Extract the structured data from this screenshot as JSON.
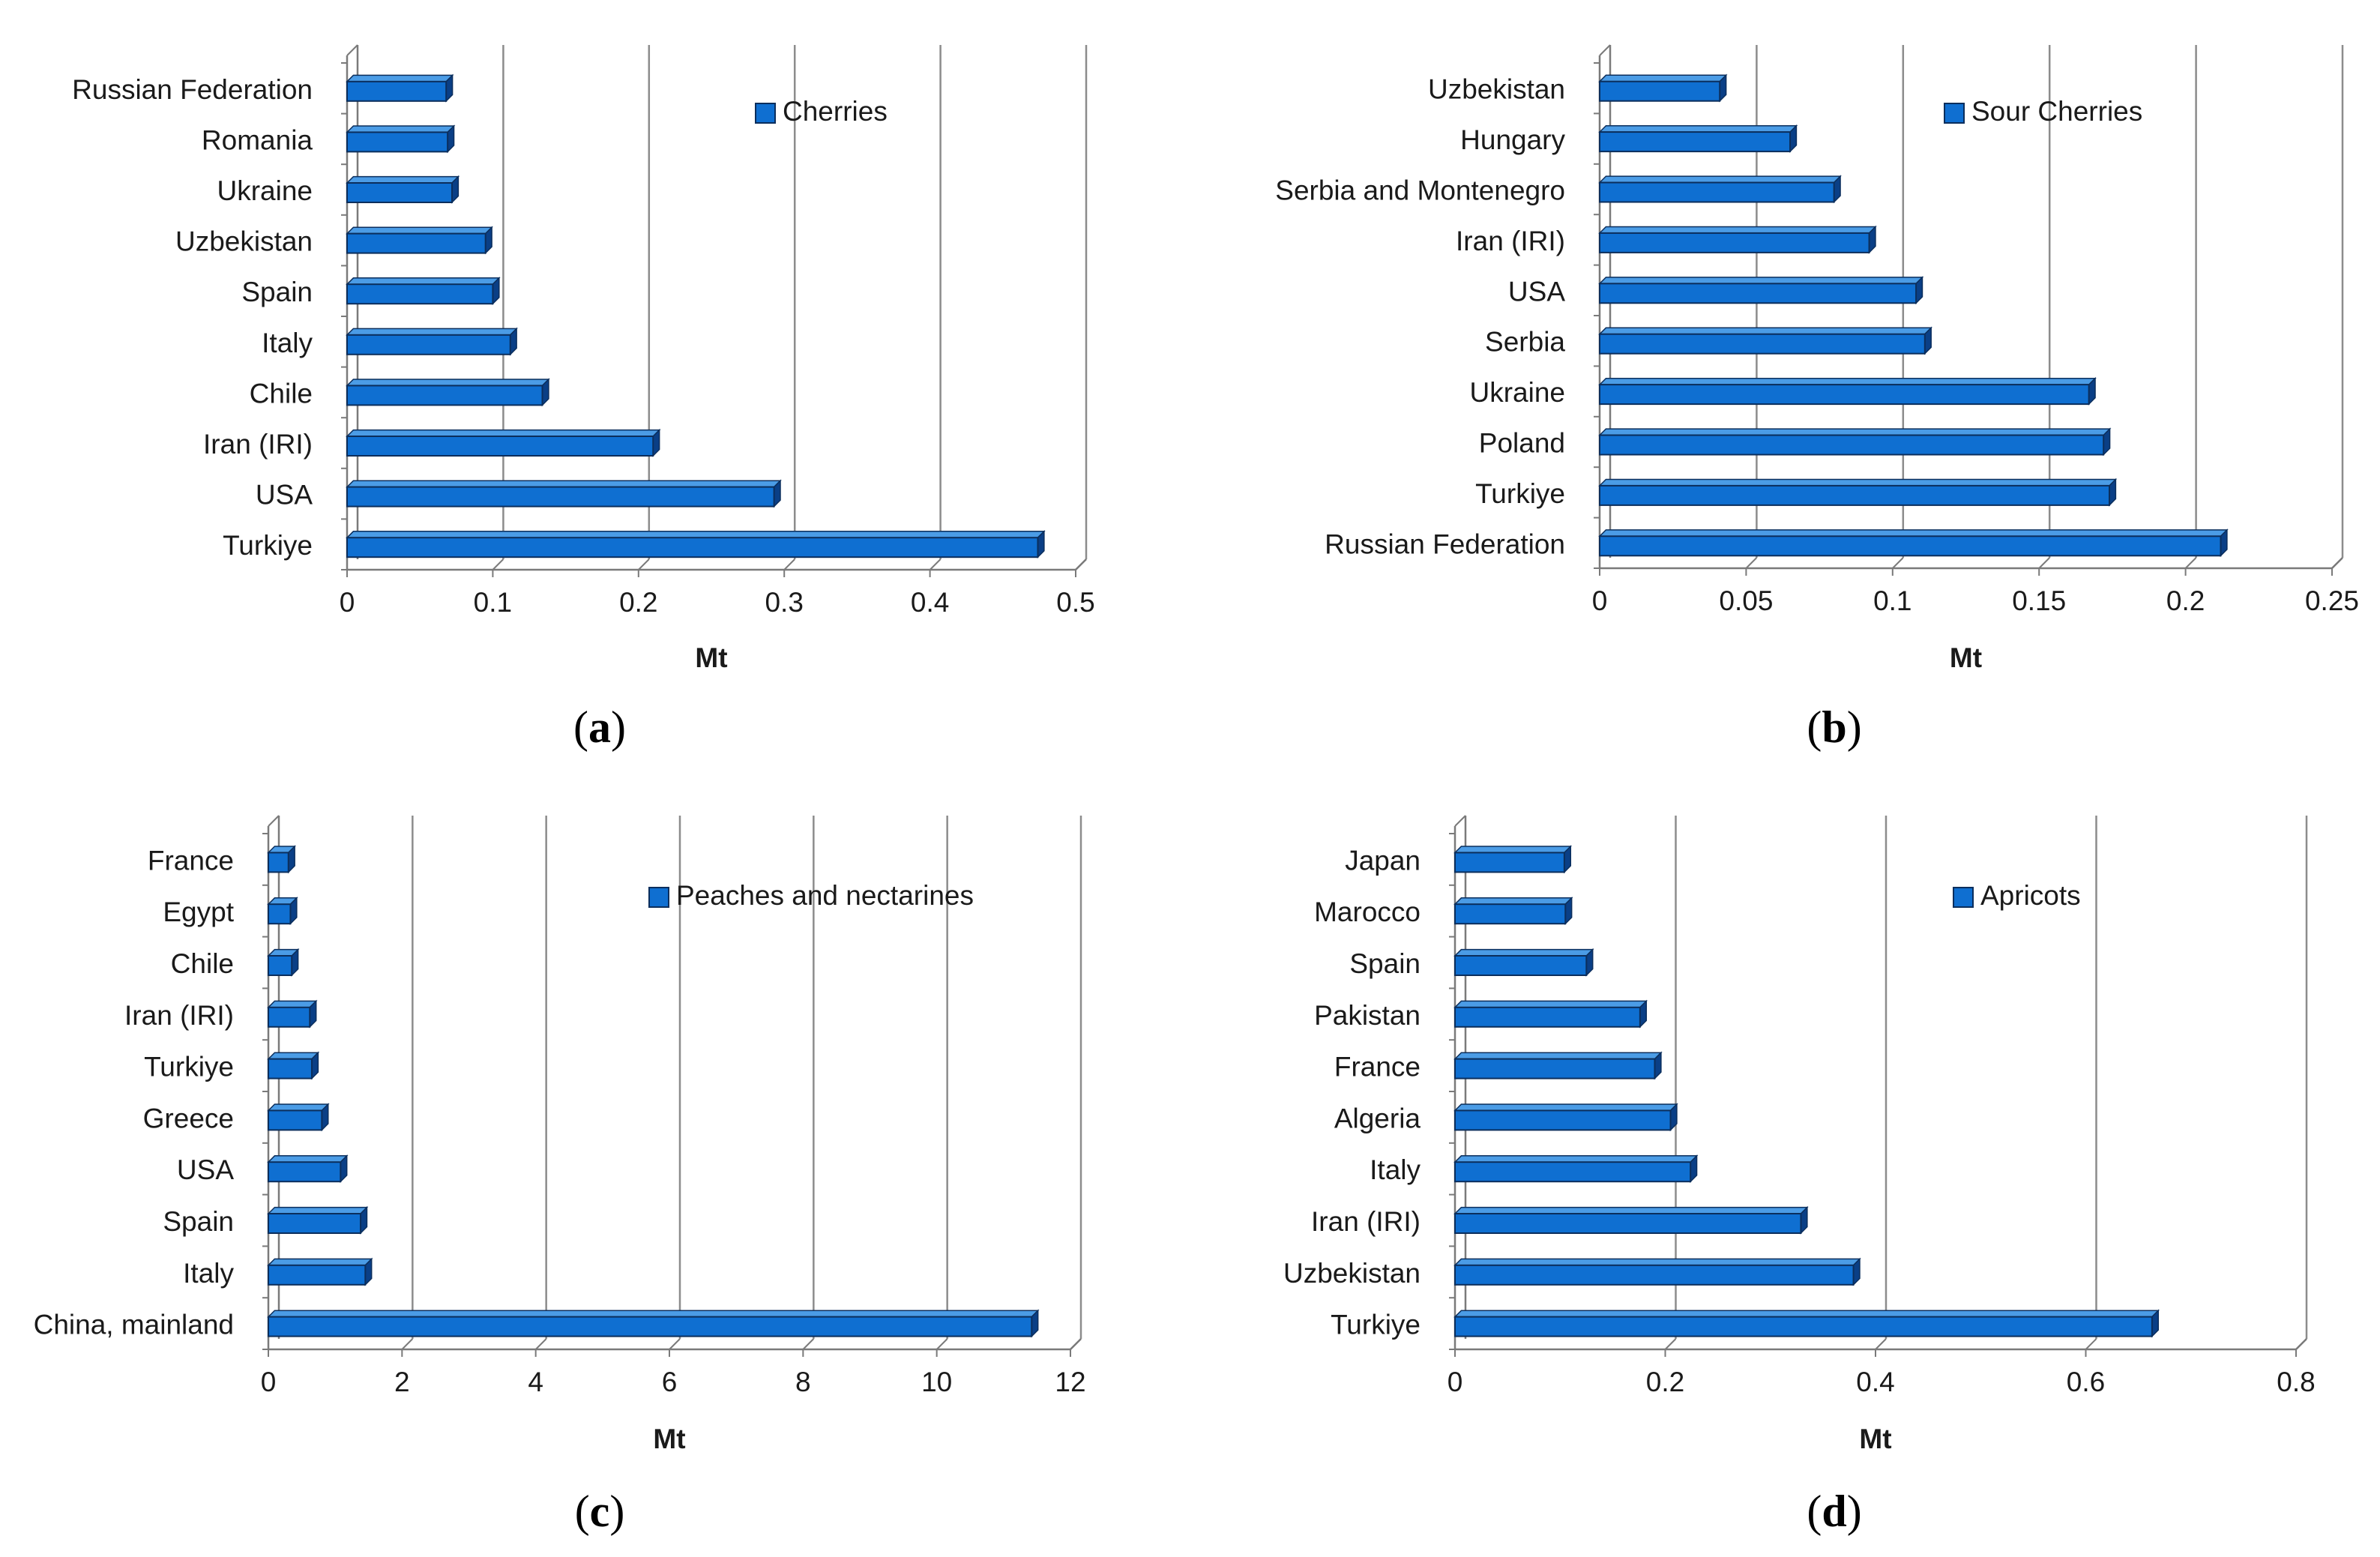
{
  "colors": {
    "bar_face": "#0f6fd1",
    "bar_top": "#4b9ce6",
    "bar_side": "#0a3f86",
    "bar_outline": "#0b2e5c",
    "gridline": "#8c8c8c",
    "axis": "#7a7a7a",
    "text": "#1a1a1a"
  },
  "chart_data": [
    {
      "type": "bar",
      "orientation": "horizontal",
      "panel_label": "a",
      "legend": "Cherries",
      "legend_position": "top-right",
      "xlabel": "Mt",
      "xlim": [
        0,
        0.5
      ],
      "ticks": [
        "0",
        "0.1",
        "0.2",
        "0.3",
        "0.4",
        "0.5"
      ],
      "tick_values": [
        0,
        0.1,
        0.2,
        0.3,
        0.4,
        0.5
      ],
      "grid": true,
      "categories": [
        "Russian Federation",
        "Romania",
        "Ukraine",
        "Uzbekistan",
        "Spain",
        "Italy",
        "Chile",
        "Iran (IRI)",
        "USA",
        "Turkiye"
      ],
      "values": [
        0.068,
        0.069,
        0.072,
        0.095,
        0.1,
        0.112,
        0.134,
        0.21,
        0.293,
        0.474
      ]
    },
    {
      "type": "bar",
      "orientation": "horizontal",
      "panel_label": "b",
      "legend": "Sour Cherries",
      "legend_position": "top-right",
      "xlabel": "Mt",
      "xlim": [
        0,
        0.25
      ],
      "ticks": [
        "0",
        "0.05",
        "0.1",
        "0.15",
        "0.2",
        "0.25"
      ],
      "tick_values": [
        0,
        0.05,
        0.1,
        0.15,
        0.2,
        0.25
      ],
      "grid": true,
      "categories": [
        "Uzbekistan",
        "Hungary",
        "Serbia and Montenegro",
        "Iran (IRI)",
        "USA",
        "Serbia",
        "Ukraine",
        "Poland",
        "Turkiye",
        "Russian Federation"
      ],
      "values": [
        0.041,
        0.065,
        0.08,
        0.092,
        0.108,
        0.111,
        0.167,
        0.172,
        0.174,
        0.212
      ]
    },
    {
      "type": "bar",
      "orientation": "horizontal",
      "panel_label": "c",
      "legend": "Peaches and nectarines",
      "legend_position": "top-right",
      "xlabel": "Mt",
      "xlim": [
        0,
        12
      ],
      "ticks": [
        "0",
        "2",
        "4",
        "6",
        "8",
        "10",
        "12"
      ],
      "tick_values": [
        0,
        2,
        4,
        6,
        8,
        10,
        12
      ],
      "grid": true,
      "categories": [
        "France",
        "Egypt",
        "Chile",
        "Iran (IRI)",
        "Turkiye",
        "Greece",
        "USA",
        "Spain",
        "Italy",
        "China, mainland"
      ],
      "values": [
        0.3,
        0.33,
        0.35,
        0.62,
        0.65,
        0.8,
        1.08,
        1.38,
        1.45,
        11.42
      ]
    },
    {
      "type": "bar",
      "orientation": "horizontal",
      "panel_label": "d",
      "legend": "Apricots",
      "legend_position": "top-right",
      "xlabel": "Mt",
      "xlim": [
        0,
        0.8
      ],
      "ticks": [
        "0",
        "0.2",
        "0.4",
        "0.6",
        "0.8"
      ],
      "tick_values": [
        0,
        0.2,
        0.4,
        0.6,
        0.8
      ],
      "grid": true,
      "categories": [
        "Japan",
        "Marocco",
        "Spain",
        "Pakistan",
        "France",
        "Algeria",
        "Italy",
        "Iran (IRI)",
        "Uzbekistan",
        "Turkiye"
      ],
      "values": [
        0.104,
        0.105,
        0.125,
        0.176,
        0.19,
        0.205,
        0.224,
        0.329,
        0.379,
        0.663
      ]
    }
  ]
}
